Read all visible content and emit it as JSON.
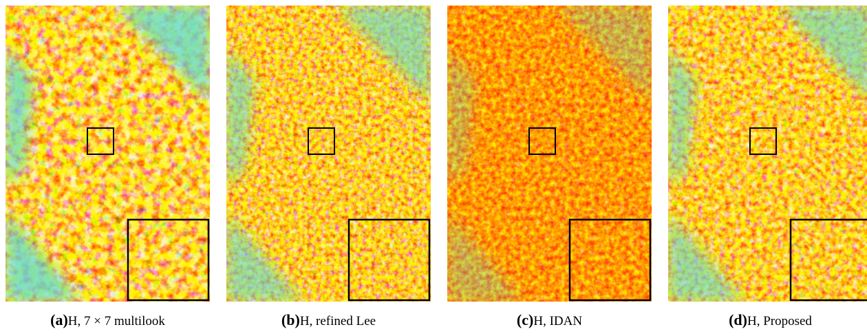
{
  "panels": [
    {
      "label": "(a)",
      "caption": "H, 7 × 7 multilook"
    },
    {
      "label": "(b)",
      "caption": "H, refined Lee"
    },
    {
      "label": "(c)",
      "caption": "H, IDAN"
    },
    {
      "label": "(d)",
      "caption": "H, Proposed"
    }
  ]
}
